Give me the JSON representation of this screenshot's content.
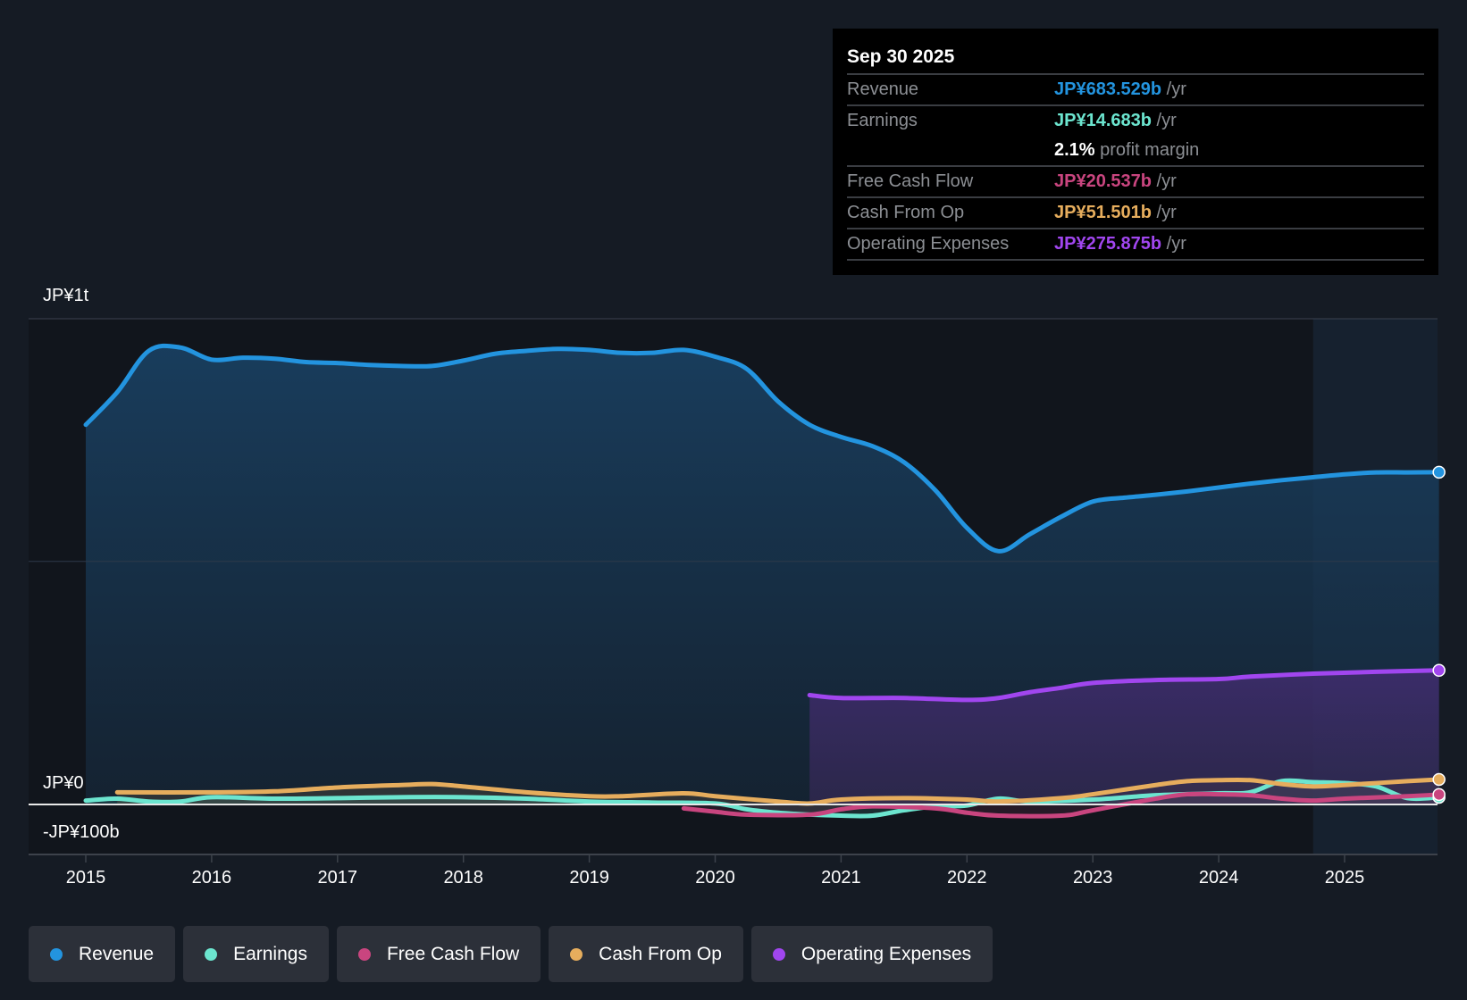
{
  "tooltip": {
    "date": "Sep 30 2025",
    "rows": [
      {
        "label": "Revenue",
        "value": "JP¥683.529b",
        "unit": "/yr",
        "color": "#2394df"
      },
      {
        "label": "Earnings",
        "value": "JP¥14.683b",
        "unit": "/yr",
        "color": "#6ce5cf"
      },
      {
        "label": "",
        "value": "2.1%",
        "unit": "profit margin",
        "color": "#ffffff"
      },
      {
        "label": "Free Cash Flow",
        "value": "JP¥20.537b",
        "unit": "/yr",
        "color": "#c9457f"
      },
      {
        "label": "Cash From Op",
        "value": "JP¥51.501b",
        "unit": "/yr",
        "color": "#e6ad5d"
      },
      {
        "label": "Operating Expenses",
        "value": "JP¥275.875b",
        "unit": "/yr",
        "color": "#a146ef"
      }
    ]
  },
  "chart_data": {
    "type": "line",
    "title": "",
    "xlabel": "",
    "ylabel": "",
    "units": "JP¥ billions",
    "ylim": [
      -100,
      1000
    ],
    "xlim": [
      2014.55,
      2025.8
    ],
    "y_tick_labels": [
      {
        "value": 1000,
        "label": "JP¥1t"
      },
      {
        "value": 0,
        "label": "JP¥0"
      },
      {
        "value": -100,
        "label": "-JP¥100b"
      }
    ],
    "x_ticks": [
      2015,
      2016,
      2017,
      2018,
      2019,
      2020,
      2021,
      2022,
      2023,
      2024,
      2025
    ],
    "x_tick_labels": [
      "2015",
      "2016",
      "2017",
      "2018",
      "2019",
      "2020",
      "2021",
      "2022",
      "2023",
      "2024",
      "2025"
    ],
    "forecast_region_start": 2024.75,
    "series": [
      {
        "name": "Revenue",
        "color": "#2394df",
        "fill": true,
        "x": [
          2015,
          2015.25,
          2015.5,
          2015.75,
          2016,
          2016.25,
          2016.5,
          2016.75,
          2017,
          2017.25,
          2017.5,
          2017.75,
          2018,
          2018.25,
          2018.5,
          2018.75,
          2019,
          2019.25,
          2019.5,
          2019.75,
          2020,
          2020.25,
          2020.5,
          2020.75,
          2021,
          2021.25,
          2021.5,
          2021.75,
          2022,
          2022.25,
          2022.5,
          2022.75,
          2023,
          2023.25,
          2023.5,
          2023.75,
          2024,
          2024.25,
          2024.5,
          2024.75,
          2025,
          2025.25,
          2025.5,
          2025.75
        ],
        "values": [
          781,
          848,
          933,
          940,
          915,
          919,
          917,
          910,
          908,
          904,
          902,
          902,
          913,
          927,
          933,
          937,
          935,
          929,
          929,
          935,
          921,
          896,
          829,
          781,
          756,
          737,
          704,
          646,
          569,
          521,
          556,
          592,
          623,
          631,
          637,
          644,
          652,
          660,
          667,
          673,
          679,
          683,
          683,
          683.5
        ]
      },
      {
        "name": "Earnings",
        "color": "#6ce5cf",
        "fill": false,
        "x": [
          2015,
          2015.25,
          2015.5,
          2015.75,
          2016,
          2016.5,
          2017,
          2017.5,
          2018,
          2018.5,
          2019,
          2019.5,
          2020,
          2020.25,
          2020.5,
          2020.75,
          2021,
          2021.25,
          2021.5,
          2021.75,
          2022,
          2022.25,
          2022.5,
          2023,
          2023.5,
          2024,
          2024.25,
          2024.5,
          2024.75,
          2025,
          2025.25,
          2025.5,
          2025.75
        ],
        "values": [
          8,
          12,
          6,
          6,
          15,
          12,
          13,
          15,
          15,
          12,
          6,
          4,
          2,
          -10,
          -17,
          -21,
          -23,
          -23,
          -12,
          -4,
          -2,
          12,
          6,
          10,
          19,
          23,
          25,
          48,
          46,
          44,
          37,
          13,
          14.7
        ]
      },
      {
        "name": "Free Cash Flow",
        "color": "#c9457f",
        "fill": false,
        "x": [
          2019.75,
          2020,
          2020.25,
          2020.75,
          2021,
          2021.25,
          2021.75,
          2022,
          2022.25,
          2022.75,
          2023,
          2023.5,
          2023.75,
          2024,
          2024.25,
          2024.5,
          2024.75,
          2025,
          2025.5,
          2025.75
        ],
        "values": [
          -8,
          -15,
          -21,
          -21,
          -10,
          -4,
          -8,
          -17,
          -23,
          -23,
          -12,
          12,
          21,
          21,
          19,
          12,
          8,
          12,
          17,
          20.5
        ]
      },
      {
        "name": "Cash From Op",
        "color": "#e6ad5d",
        "fill": false,
        "x": [
          2015.25,
          2016,
          2016.5,
          2017,
          2017.5,
          2017.75,
          2018,
          2018.5,
          2019,
          2019.25,
          2019.75,
          2020,
          2020.5,
          2020.75,
          2021,
          2021.5,
          2022,
          2022.25,
          2022.75,
          2023,
          2023.5,
          2023.75,
          2024,
          2024.25,
          2024.5,
          2024.75,
          2025,
          2025.5,
          2025.75
        ],
        "values": [
          25,
          25,
          27,
          35,
          40,
          42,
          37,
          25,
          17,
          17,
          23,
          17,
          6,
          2,
          10,
          13,
          10,
          6,
          13,
          21,
          40,
          48,
          50,
          50,
          42,
          37,
          40,
          48,
          51.5
        ]
      },
      {
        "name": "Operating Expenses",
        "color": "#a146ef",
        "fill": true,
        "x": [
          2020.75,
          2021,
          2021.5,
          2022,
          2022.25,
          2022.5,
          2022.75,
          2023,
          2023.5,
          2024,
          2024.25,
          2024.75,
          2025.25,
          2025.75
        ],
        "values": [
          225,
          219,
          219,
          215,
          219,
          231,
          240,
          250,
          256,
          258,
          263,
          269,
          273,
          275.9
        ]
      }
    ]
  },
  "legend": [
    {
      "label": "Revenue",
      "color": "#2394df"
    },
    {
      "label": "Earnings",
      "color": "#6ce5cf"
    },
    {
      "label": "Free Cash Flow",
      "color": "#c9457f"
    },
    {
      "label": "Cash From Op",
      "color": "#e6ad5d"
    },
    {
      "label": "Operating Expenses",
      "color": "#a146ef"
    }
  ]
}
